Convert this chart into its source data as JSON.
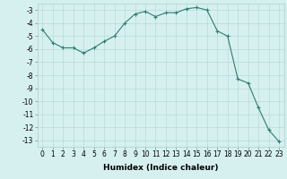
{
  "x": [
    0,
    1,
    2,
    3,
    4,
    5,
    6,
    7,
    8,
    9,
    10,
    11,
    12,
    13,
    14,
    15,
    16,
    17,
    18,
    19,
    20,
    21,
    22,
    23
  ],
  "y": [
    -4.5,
    -5.5,
    -5.9,
    -5.9,
    -6.3,
    -5.9,
    -5.4,
    -5.0,
    -4.0,
    -3.3,
    -3.1,
    -3.5,
    -3.2,
    -3.2,
    -2.9,
    -2.8,
    -3.0,
    -4.6,
    -5.0,
    -8.3,
    -8.6,
    -10.5,
    -12.2,
    -13.1
  ],
  "line_color": "#2e7d6e",
  "marker": "+",
  "marker_size": 3,
  "marker_linewidth": 0.8,
  "bg_color": "#d6f0f0",
  "grid_color": "#b8dada",
  "xlabel": "Humidex (Indice chaleur)",
  "xlim": [
    -0.5,
    23.5
  ],
  "ylim": [
    -13.5,
    -2.5
  ],
  "xticks": [
    0,
    1,
    2,
    3,
    4,
    5,
    6,
    7,
    8,
    9,
    10,
    11,
    12,
    13,
    14,
    15,
    16,
    17,
    18,
    19,
    20,
    21,
    22,
    23
  ],
  "yticks": [
    -3,
    -4,
    -5,
    -6,
    -7,
    -8,
    -9,
    -10,
    -11,
    -12,
    -13
  ],
  "tick_fontsize": 5.5,
  "xlabel_fontsize": 6.5,
  "linewidth": 0.8
}
